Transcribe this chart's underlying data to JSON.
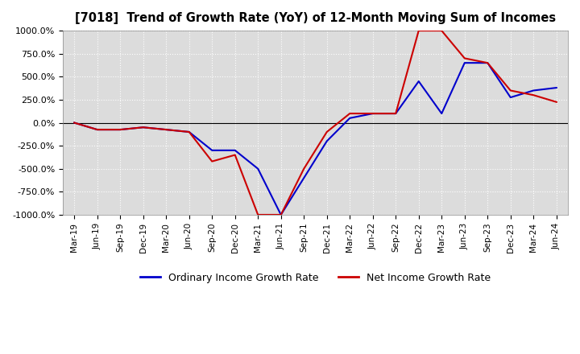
{
  "title": "[7018]  Trend of Growth Rate (YoY) of 12-Month Moving Sum of Incomes",
  "ylim": [
    -1000,
    1000
  ],
  "yticks": [
    -1000,
    -750,
    -500,
    -250,
    0,
    250,
    500,
    750,
    1000
  ],
  "ytick_labels": [
    "-1000.0%",
    "-750.0%",
    "-500.0%",
    "-250.0%",
    "0.0%",
    "250.0%",
    "500.0%",
    "750.0%",
    "1000.0%"
  ],
  "background_color": "#ffffff",
  "plot_background_color": "#dcdcdc",
  "grid_color": "#ffffff",
  "grid_style": "dotted",
  "legend_labels": [
    "Ordinary Income Growth Rate",
    "Net Income Growth Rate"
  ],
  "line_colors": [
    "#0000cc",
    "#cc0000"
  ],
  "dates": [
    "Mar-19",
    "Jun-19",
    "Sep-19",
    "Dec-19",
    "Mar-20",
    "Jun-20",
    "Sep-20",
    "Dec-20",
    "Mar-21",
    "Jun-21",
    "Sep-21",
    "Dec-21",
    "Mar-22",
    "Jun-22",
    "Sep-22",
    "Dec-22",
    "Mar-23",
    "Jun-23",
    "Sep-23",
    "Dec-23",
    "Mar-24",
    "Jun-24"
  ],
  "ordinary_income": [
    0,
    -75,
    -75,
    -50,
    -75,
    -100,
    -300,
    -300,
    -500,
    -1000,
    -600,
    -200,
    50,
    100,
    100,
    450,
    100,
    650,
    650,
    275,
    350,
    380
  ],
  "net_income": [
    0,
    -75,
    -75,
    -50,
    -75,
    -100,
    -420,
    -350,
    -1000,
    -1000,
    -500,
    -100,
    100,
    100,
    100,
    1000,
    1000,
    700,
    650,
    350,
    300,
    225
  ]
}
